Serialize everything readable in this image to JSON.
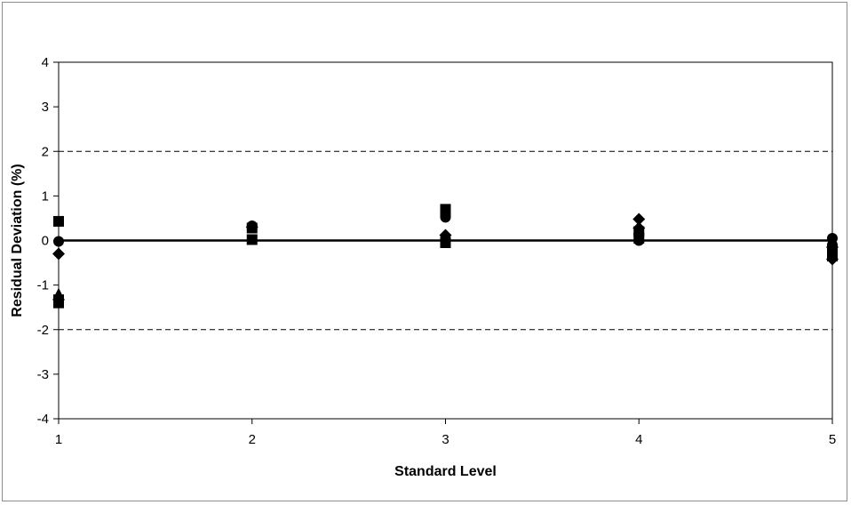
{
  "chart_data": {
    "type": "scatter",
    "title": "",
    "xlabel": "Standard Level",
    "ylabel": "Residual Deviation (%)",
    "xlim": [
      1,
      5
    ],
    "ylim": [
      -4,
      4
    ],
    "x_ticks": [
      "1",
      "2",
      "3",
      "4",
      "5"
    ],
    "y_ticks": [
      "4",
      "3",
      "2",
      "1",
      "0",
      "-1",
      "-2",
      "-3",
      "-4"
    ],
    "grid": false,
    "legend": "none",
    "colors": {
      "marker": "#000000",
      "axis": "#000000"
    },
    "reference_lines": [
      {
        "y": 2,
        "style": "dashed"
      },
      {
        "y": 0,
        "style": "solid"
      },
      {
        "y": -2,
        "style": "dashed"
      }
    ],
    "series": [
      {
        "marker": "square",
        "points": [
          {
            "x": 1,
            "y": 0.43
          },
          {
            "x": 1,
            "y": -1.33
          },
          {
            "x": 1,
            "y": -1.4
          },
          {
            "x": 2,
            "y": 0.28
          },
          {
            "x": 2,
            "y": 0.02
          },
          {
            "x": 3,
            "y": 0.7
          },
          {
            "x": 3,
            "y": 0.63
          },
          {
            "x": 3,
            "y": -0.05
          },
          {
            "x": 4,
            "y": 0.2
          },
          {
            "x": 4,
            "y": 0.05
          },
          {
            "x": 5,
            "y": -0.2
          },
          {
            "x": 5,
            "y": -0.35
          }
        ]
      },
      {
        "marker": "circle",
        "points": [
          {
            "x": 1,
            "y": -0.02
          },
          {
            "x": 2,
            "y": 0.33
          },
          {
            "x": 3,
            "y": 0.52
          },
          {
            "x": 3,
            "y": 0.05
          },
          {
            "x": 4,
            "y": 0.15
          },
          {
            "x": 4,
            "y": 0.0
          },
          {
            "x": 5,
            "y": 0.05
          },
          {
            "x": 5,
            "y": -0.1
          },
          {
            "x": 5,
            "y": -0.28
          }
        ]
      },
      {
        "marker": "diamond",
        "points": [
          {
            "x": 1,
            "y": -0.3
          },
          {
            "x": 2,
            "y": 0.3
          },
          {
            "x": 3,
            "y": 0.12
          },
          {
            "x": 4,
            "y": 0.48
          },
          {
            "x": 4,
            "y": 0.28
          },
          {
            "x": 5,
            "y": -0.42
          },
          {
            "x": 5,
            "y": -0.15
          }
        ]
      },
      {
        "marker": "triangle",
        "points": [
          {
            "x": 1,
            "y": -1.2
          }
        ]
      }
    ]
  }
}
